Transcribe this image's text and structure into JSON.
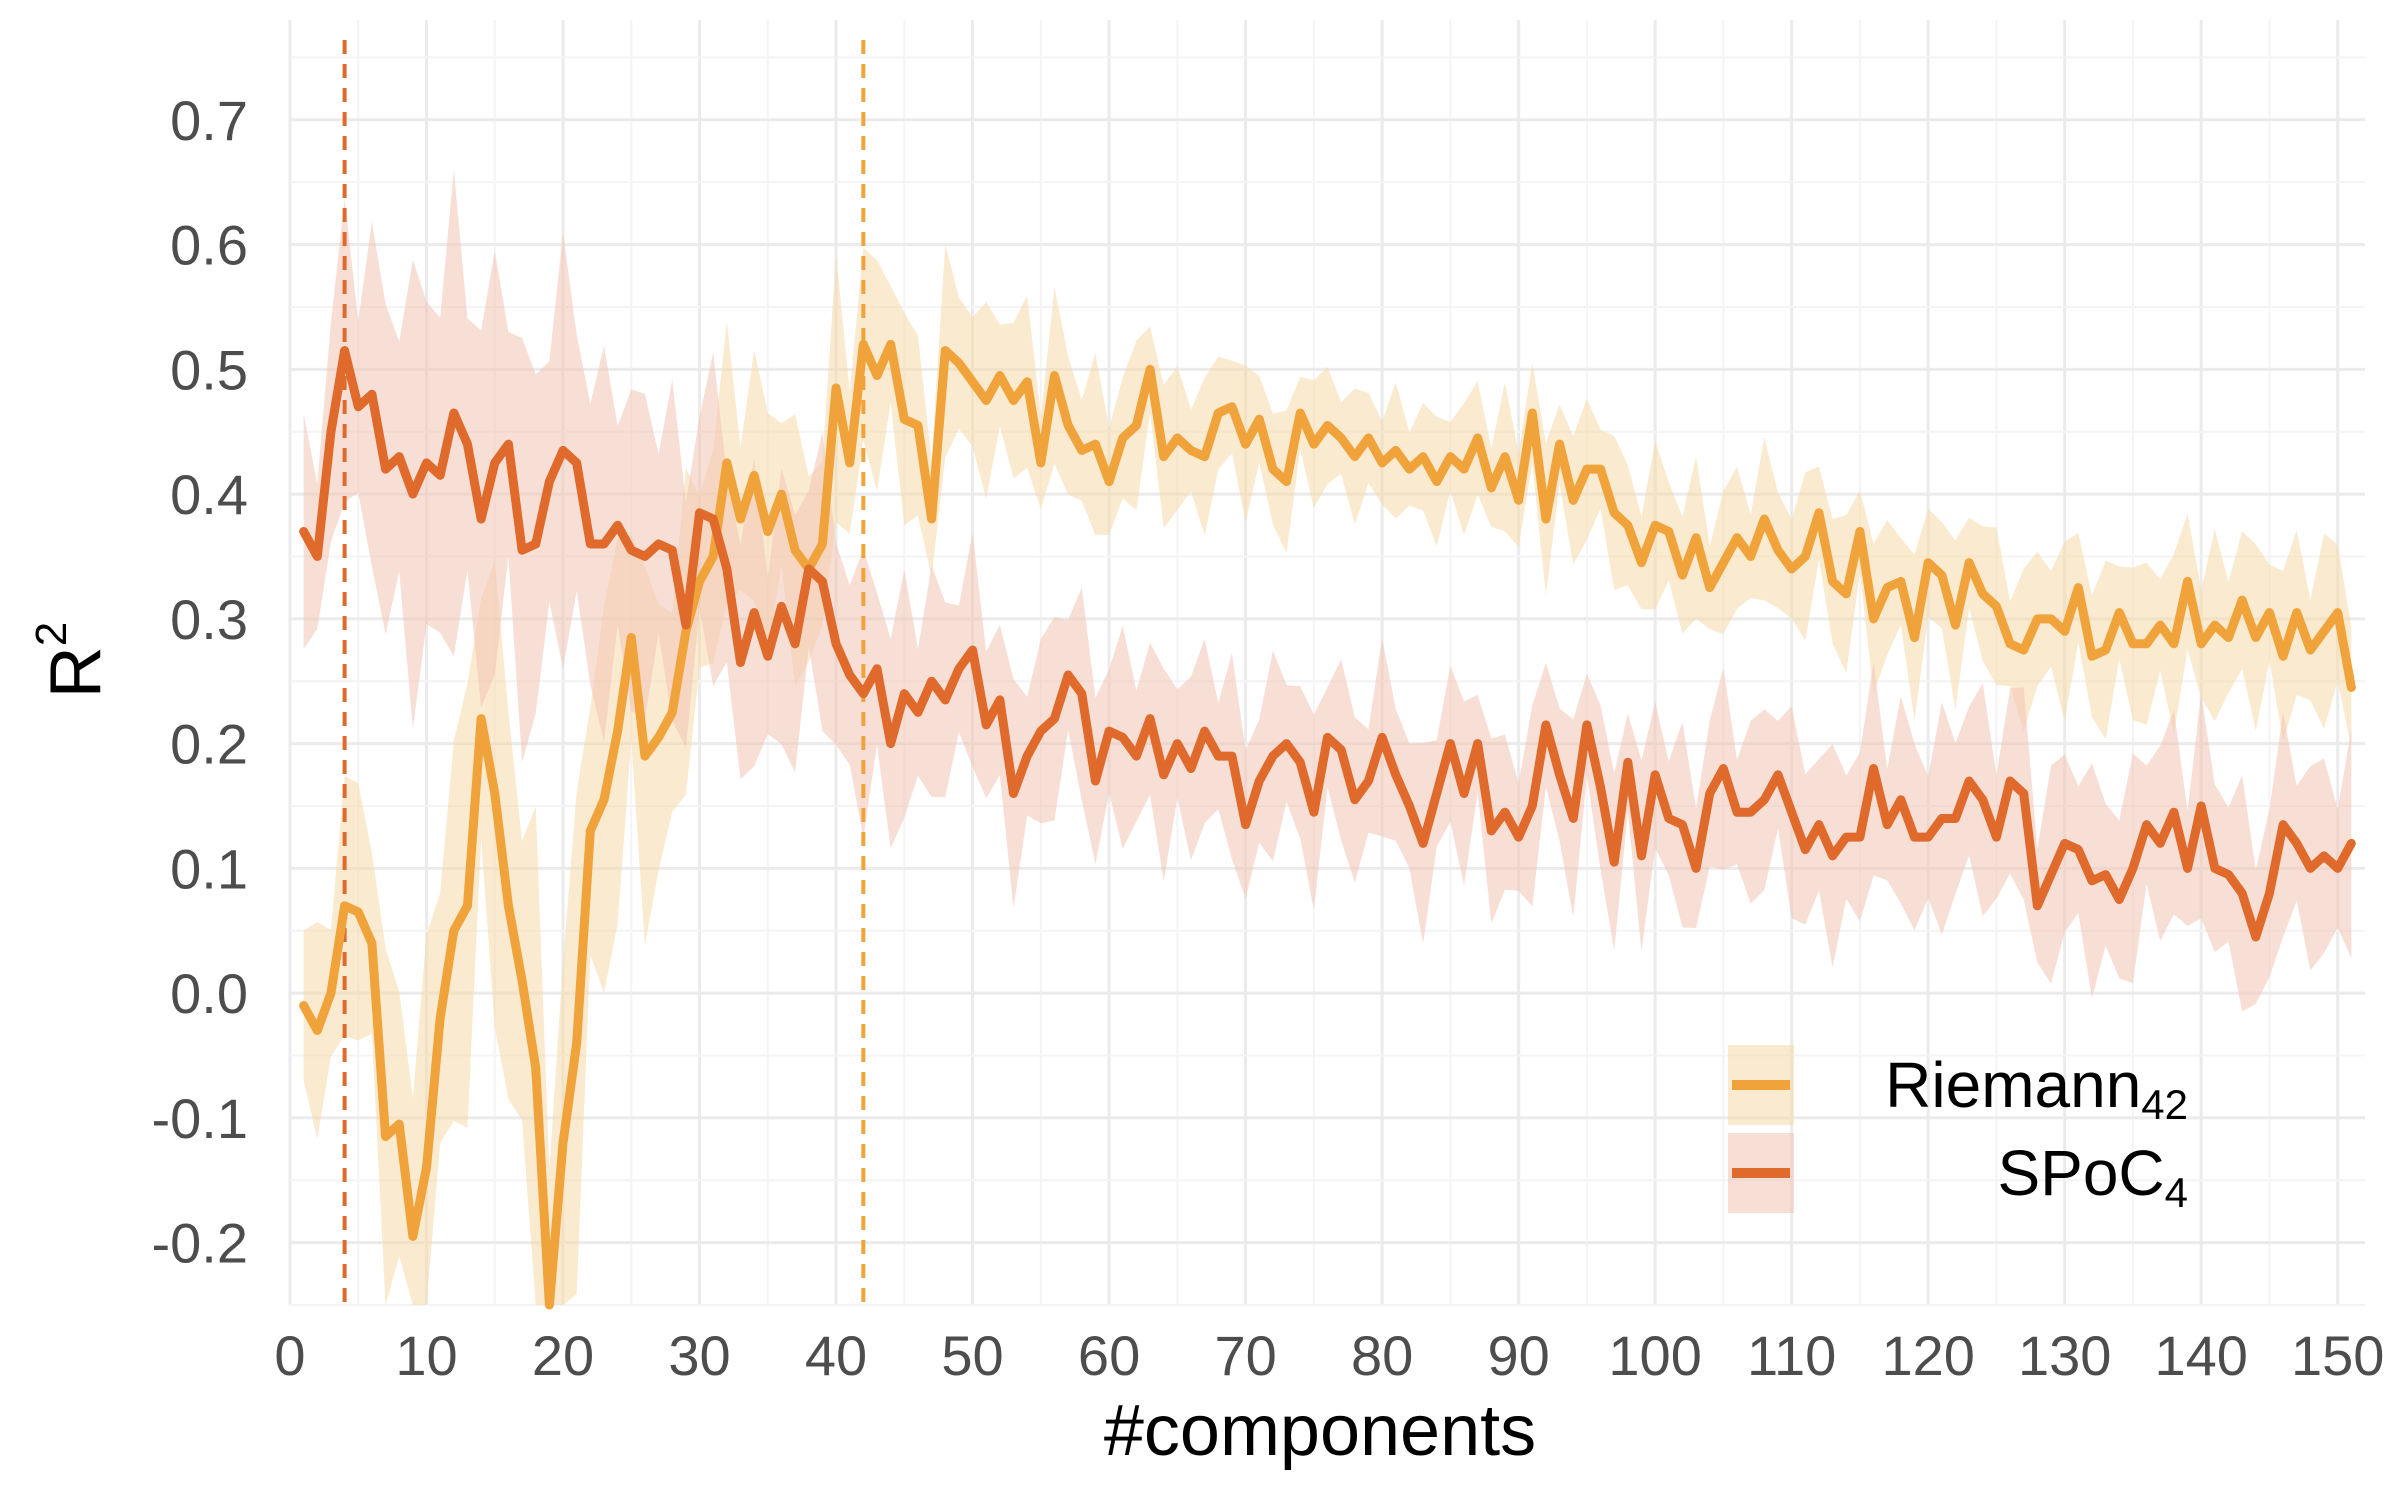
{
  "chart_data": {
    "type": "line",
    "xlabel": "#components",
    "ylabel": "R",
    "ylabel_superscript": "2",
    "xlim": [
      0,
      152
    ],
    "ylim": [
      -0.25,
      0.78
    ],
    "xticks": [
      0,
      10,
      20,
      30,
      40,
      50,
      60,
      70,
      80,
      90,
      100,
      110,
      120,
      130,
      140,
      150
    ],
    "xtick_labels": [
      "0",
      "10",
      "20",
      "30",
      "40",
      "50",
      "60",
      "70",
      "80",
      "90",
      "100",
      "110",
      "120",
      "130",
      "140",
      "150"
    ],
    "yticks": [
      -0.2,
      -0.1,
      0.0,
      0.1,
      0.2,
      0.3,
      0.4,
      0.5,
      0.6,
      0.7
    ],
    "ytick_labels": [
      "-0.2",
      "-0.1",
      "0.0",
      "0.1",
      "0.2",
      "0.3",
      "0.4",
      "0.5",
      "0.6",
      "0.7"
    ],
    "grid": true,
    "legend_position": "bottom-right",
    "vlines": [
      {
        "x": 4,
        "color": "#E06A2B",
        "style": "dashed"
      },
      {
        "x": 42,
        "color": "#F0A33A",
        "style": "dashed"
      }
    ],
    "series": [
      {
        "name": "Riemann",
        "name_subscript": "42",
        "color": "#F0A33A",
        "band_color": "#F5D9A8",
        "band_halfwidth": [
          [
            1,
            0.06
          ],
          [
            10,
            0.14
          ],
          [
            20,
            0.16
          ],
          [
            30,
            0.09
          ],
          [
            40,
            0.08
          ],
          [
            50,
            0.06
          ],
          [
            80,
            0.04
          ],
          [
            100,
            0.05
          ],
          [
            120,
            0.05
          ],
          [
            150,
            0.06
          ]
        ],
        "x": [
          1,
          2,
          3,
          4,
          5,
          6,
          7,
          8,
          9,
          10,
          11,
          12,
          13,
          14,
          15,
          16,
          17,
          18,
          19,
          20,
          21,
          22,
          23,
          24,
          25,
          26,
          27,
          28,
          29,
          30,
          31,
          32,
          33,
          34,
          35,
          36,
          37,
          38,
          39,
          40,
          41,
          42,
          43,
          44,
          45,
          46,
          47,
          48,
          49,
          50,
          51,
          52,
          53,
          54,
          55,
          56,
          57,
          58,
          59,
          60,
          61,
          62,
          63,
          64,
          65,
          66,
          67,
          68,
          69,
          70,
          71,
          72,
          73,
          74,
          75,
          76,
          77,
          78,
          79,
          80,
          81,
          82,
          83,
          84,
          85,
          86,
          87,
          88,
          89,
          90,
          91,
          92,
          93,
          94,
          95,
          96,
          97,
          98,
          99,
          100,
          101,
          102,
          103,
          104,
          105,
          106,
          107,
          108,
          109,
          110,
          111,
          112,
          113,
          114,
          115,
          116,
          117,
          118,
          119,
          120,
          121,
          122,
          123,
          124,
          125,
          126,
          127,
          128,
          129,
          130,
          131,
          132,
          133,
          134,
          135,
          136,
          137,
          138,
          139,
          140,
          141,
          142,
          143,
          144,
          145,
          146,
          147,
          148,
          149,
          150,
          151
        ],
        "values": [
          -0.01,
          -0.03,
          0.0,
          0.07,
          0.065,
          0.04,
          -0.115,
          -0.105,
          -0.195,
          -0.14,
          -0.02,
          0.05,
          0.07,
          0.22,
          0.16,
          0.07,
          0.01,
          -0.06,
          -0.27,
          -0.12,
          -0.04,
          0.13,
          0.155,
          0.21,
          0.285,
          0.19,
          0.205,
          0.225,
          0.29,
          0.33,
          0.35,
          0.425,
          0.38,
          0.415,
          0.37,
          0.4,
          0.355,
          0.34,
          0.36,
          0.485,
          0.425,
          0.52,
          0.495,
          0.52,
          0.46,
          0.455,
          0.38,
          0.515,
          0.505,
          0.49,
          0.475,
          0.495,
          0.475,
          0.49,
          0.425,
          0.495,
          0.455,
          0.435,
          0.44,
          0.41,
          0.445,
          0.455,
          0.5,
          0.43,
          0.445,
          0.435,
          0.43,
          0.465,
          0.47,
          0.44,
          0.46,
          0.42,
          0.41,
          0.465,
          0.44,
          0.455,
          0.445,
          0.43,
          0.445,
          0.425,
          0.435,
          0.42,
          0.43,
          0.41,
          0.43,
          0.42,
          0.445,
          0.405,
          0.43,
          0.395,
          0.465,
          0.38,
          0.44,
          0.395,
          0.42,
          0.42,
          0.385,
          0.375,
          0.345,
          0.375,
          0.37,
          0.335,
          0.365,
          0.325,
          0.345,
          0.365,
          0.35,
          0.38,
          0.355,
          0.34,
          0.35,
          0.385,
          0.33,
          0.32,
          0.37,
          0.3,
          0.325,
          0.33,
          0.285,
          0.345,
          0.335,
          0.295,
          0.345,
          0.32,
          0.31,
          0.28,
          0.275,
          0.3,
          0.3,
          0.29,
          0.325,
          0.27,
          0.275,
          0.305,
          0.28,
          0.28,
          0.295,
          0.28,
          0.33,
          0.28,
          0.295,
          0.285,
          0.315,
          0.285,
          0.305,
          0.27,
          0.305,
          0.275,
          0.29,
          0.305,
          0.245
        ]
      },
      {
        "name": "SPoC",
        "name_subscript": "4",
        "color": "#E06A2B",
        "band_color": "#F2C5B5",
        "band_halfwidth": [
          [
            1,
            0.07
          ],
          [
            10,
            0.15
          ],
          [
            20,
            0.13
          ],
          [
            30,
            0.1
          ],
          [
            40,
            0.09
          ],
          [
            50,
            0.07
          ],
          [
            80,
            0.06
          ],
          [
            100,
            0.06
          ],
          [
            120,
            0.07
          ],
          [
            150,
            0.07
          ]
        ],
        "x": [
          1,
          2,
          3,
          4,
          5,
          6,
          7,
          8,
          9,
          10,
          11,
          12,
          13,
          14,
          15,
          16,
          17,
          18,
          19,
          20,
          21,
          22,
          23,
          24,
          25,
          26,
          27,
          28,
          29,
          30,
          31,
          32,
          33,
          34,
          35,
          36,
          37,
          38,
          39,
          40,
          41,
          42,
          43,
          44,
          45,
          46,
          47,
          48,
          49,
          50,
          51,
          52,
          53,
          54,
          55,
          56,
          57,
          58,
          59,
          60,
          61,
          62,
          63,
          64,
          65,
          66,
          67,
          68,
          69,
          70,
          71,
          72,
          73,
          74,
          75,
          76,
          77,
          78,
          79,
          80,
          81,
          82,
          83,
          84,
          85,
          86,
          87,
          88,
          89,
          90,
          91,
          92,
          93,
          94,
          95,
          96,
          97,
          98,
          99,
          100,
          101,
          102,
          103,
          104,
          105,
          106,
          107,
          108,
          109,
          110,
          111,
          112,
          113,
          114,
          115,
          116,
          117,
          118,
          119,
          120,
          121,
          122,
          123,
          124,
          125,
          126,
          127,
          128,
          129,
          130,
          131,
          132,
          133,
          134,
          135,
          136,
          137,
          138,
          139,
          140,
          141,
          142,
          143,
          144,
          145,
          146,
          147,
          148,
          149,
          150,
          151
        ],
        "values": [
          0.37,
          0.35,
          0.45,
          0.515,
          0.47,
          0.48,
          0.42,
          0.43,
          0.4,
          0.425,
          0.415,
          0.465,
          0.44,
          0.38,
          0.425,
          0.44,
          0.355,
          0.36,
          0.41,
          0.435,
          0.425,
          0.36,
          0.36,
          0.375,
          0.355,
          0.35,
          0.36,
          0.355,
          0.295,
          0.385,
          0.38,
          0.34,
          0.265,
          0.305,
          0.27,
          0.31,
          0.28,
          0.34,
          0.33,
          0.28,
          0.255,
          0.24,
          0.26,
          0.2,
          0.24,
          0.225,
          0.25,
          0.235,
          0.26,
          0.275,
          0.215,
          0.235,
          0.16,
          0.19,
          0.21,
          0.22,
          0.255,
          0.24,
          0.17,
          0.21,
          0.205,
          0.19,
          0.22,
          0.175,
          0.2,
          0.18,
          0.21,
          0.19,
          0.19,
          0.135,
          0.17,
          0.19,
          0.2,
          0.185,
          0.145,
          0.205,
          0.195,
          0.155,
          0.17,
          0.205,
          0.175,
          0.15,
          0.12,
          0.16,
          0.2,
          0.16,
          0.2,
          0.13,
          0.145,
          0.125,
          0.15,
          0.215,
          0.175,
          0.14,
          0.215,
          0.165,
          0.105,
          0.185,
          0.11,
          0.175,
          0.14,
          0.135,
          0.1,
          0.16,
          0.18,
          0.145,
          0.145,
          0.155,
          0.175,
          0.145,
          0.115,
          0.135,
          0.11,
          0.125,
          0.125,
          0.18,
          0.135,
          0.155,
          0.125,
          0.125,
          0.14,
          0.14,
          0.17,
          0.155,
          0.125,
          0.17,
          0.16,
          0.07,
          0.095,
          0.12,
          0.115,
          0.09,
          0.095,
          0.075,
          0.1,
          0.135,
          0.12,
          0.145,
          0.1,
          0.15,
          0.1,
          0.095,
          0.08,
          0.045,
          0.08,
          0.135,
          0.12,
          0.1,
          0.11,
          0.1,
          0.12
        ]
      }
    ]
  }
}
